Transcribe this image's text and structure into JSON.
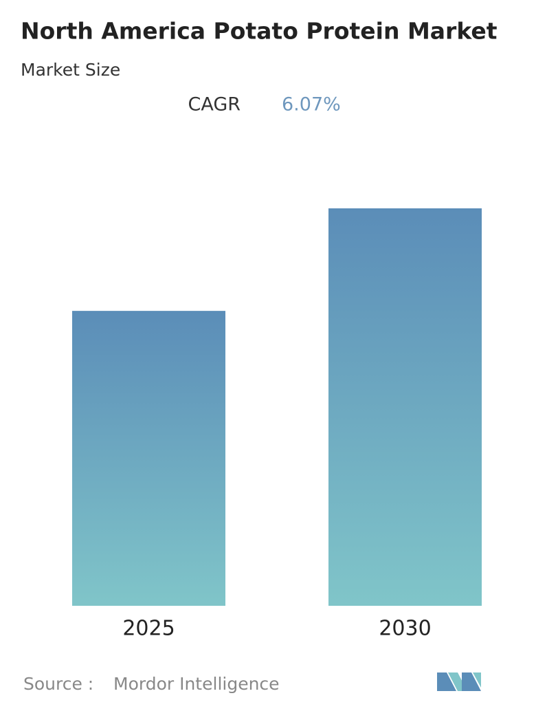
{
  "chart_data": {
    "type": "bar",
    "title": "North America Potato Protein Market",
    "subtitle": "Market Size",
    "cagr": {
      "label": "CAGR",
      "value": "6.07%"
    },
    "categories": [
      "2025",
      "2030"
    ],
    "values": [
      74.2,
      100
    ],
    "color_top": "#5b8db8",
    "color_bottom": "#80c5c9",
    "source_label": "Source :",
    "source": "Mordor Intelligence"
  }
}
